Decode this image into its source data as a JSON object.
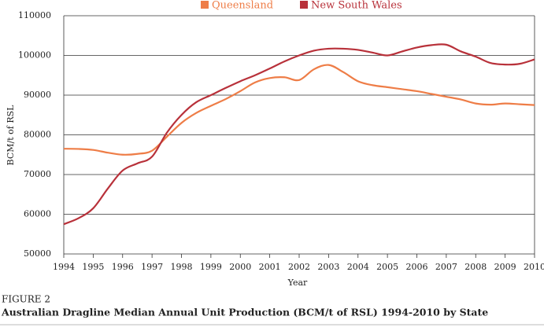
{
  "chart_data": {
    "type": "line",
    "title": "Australian Dragline Median Annual Unit Production (BCM/t of RSL) 1994-2010 by State",
    "figure_label": "FIGURE 2",
    "x_label": "Year",
    "y_label": "BCM/t of RSL",
    "x": [
      1994,
      1994.5,
      1995,
      1995.5,
      1996,
      1996.5,
      1997,
      1997.5,
      1998,
      1998.5,
      1999,
      1999.5,
      2000,
      2000.5,
      2001,
      2001.5,
      2002,
      2002.5,
      2003,
      2003.5,
      2004,
      2004.5,
      2005,
      2005.5,
      2006,
      2006.5,
      2007,
      2007.5,
      2008,
      2008.5,
      2009,
      2009.5,
      2010
    ],
    "series": [
      {
        "name": "Queensland",
        "color": "#ee7d47",
        "values": [
          76500,
          76450,
          76200,
          75500,
          75000,
          75200,
          76000,
          79500,
          83000,
          85500,
          87300,
          89000,
          91000,
          93200,
          94300,
          94500,
          93800,
          96500,
          97600,
          95800,
          93500,
          92500,
          92000,
          91500,
          91000,
          90300,
          89600,
          88900,
          87900,
          87600,
          87900,
          87700,
          87500
        ]
      },
      {
        "name": "New South Wales",
        "color": "#b8313a",
        "values": [
          57500,
          59000,
          61500,
          66500,
          71000,
          72800,
          74500,
          80500,
          85000,
          88200,
          90000,
          91800,
          93500,
          95000,
          96700,
          98500,
          100000,
          101200,
          101700,
          101700,
          101400,
          100700,
          100000,
          101000,
          102000,
          102600,
          102700,
          101000,
          99700,
          98100,
          97700,
          97900,
          99000
        ]
      }
    ],
    "xlim": [
      1994,
      2010
    ],
    "xticks": [
      1994,
      1995,
      1996,
      1997,
      1998,
      1999,
      2000,
      2001,
      2002,
      2003,
      2004,
      2005,
      2006,
      2007,
      2008,
      2009,
      2010
    ],
    "ylim": [
      50000,
      110000
    ],
    "yticks": [
      50000,
      60000,
      70000,
      80000,
      90000,
      100000,
      110000
    ],
    "grid": true
  }
}
